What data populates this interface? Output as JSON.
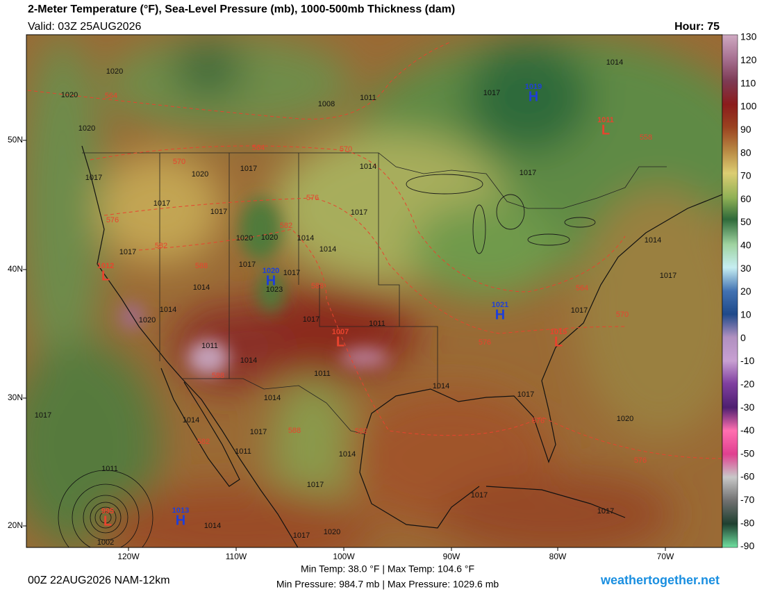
{
  "header": {
    "title": "2-Meter Temperature (°F), Sea-Level Pressure (mb), 1000-500mb Thickness (dam)",
    "valid": "Valid: 03Z 25AUG2026",
    "hour": "Hour: 75"
  },
  "map": {
    "lat_labels": [
      "50N",
      "40N",
      "30N",
      "20N"
    ],
    "lon_labels": [
      "120W",
      "110W",
      "100W",
      "90W",
      "80W",
      "70W"
    ],
    "isobar_labels": [
      "1020",
      "1020",
      "1020",
      "1011",
      "1008",
      "1017",
      "1014",
      "1014",
      "1017",
      "1020",
      "1017",
      "1017",
      "1017",
      "1017",
      "1017",
      "1020",
      "1020",
      "1014",
      "1014",
      "1017",
      "1014",
      "1017",
      "1017",
      "1017",
      "1023",
      "1014",
      "1014",
      "1020",
      "1017",
      "1011",
      "1017",
      "1011",
      "1014",
      "1011",
      "1014",
      "1014",
      "1017",
      "1017",
      "1014",
      "1017",
      "1020",
      "1011",
      "1014",
      "1017",
      "1011",
      "1017",
      "1014",
      "1020",
      "1017",
      "1017",
      "1002"
    ],
    "thickness_labels": [
      "564",
      "564",
      "570",
      "570",
      "576",
      "576",
      "582",
      "582",
      "588",
      "588",
      "564",
      "570",
      "576",
      "588",
      "582",
      "588",
      "582",
      "576",
      "576",
      "558"
    ],
    "highs": [
      {
        "value": "1019",
        "letter": "H"
      },
      {
        "value": "1020",
        "letter": "H"
      },
      {
        "value": "1021",
        "letter": "H"
      },
      {
        "value": "1013",
        "letter": "H"
      }
    ],
    "lows": [
      {
        "value": "1011",
        "letter": "L"
      },
      {
        "value": "1012",
        "letter": "L"
      },
      {
        "value": "1007",
        "letter": "L"
      },
      {
        "value": "1015",
        "letter": "L"
      },
      {
        "value": "995",
        "letter": "L"
      }
    ]
  },
  "colorbar": {
    "ticks": [
      "130",
      "120",
      "110",
      "100",
      "90",
      "80",
      "70",
      "60",
      "50",
      "40",
      "30",
      "20",
      "10",
      "0",
      "-10",
      "-20",
      "-30",
      "-40",
      "-50",
      "-60",
      "-70",
      "-80",
      "-90"
    ]
  },
  "footer": {
    "run": "00Z 22AUG2026 NAM-12km",
    "temps": "Min Temp:  38.0 °F | Max Temp: 104.6 °F",
    "pressures": "Min Pressure: 984.7 mb | Max Pressure: 1029.6 mb",
    "site": "weathertogether.net"
  }
}
